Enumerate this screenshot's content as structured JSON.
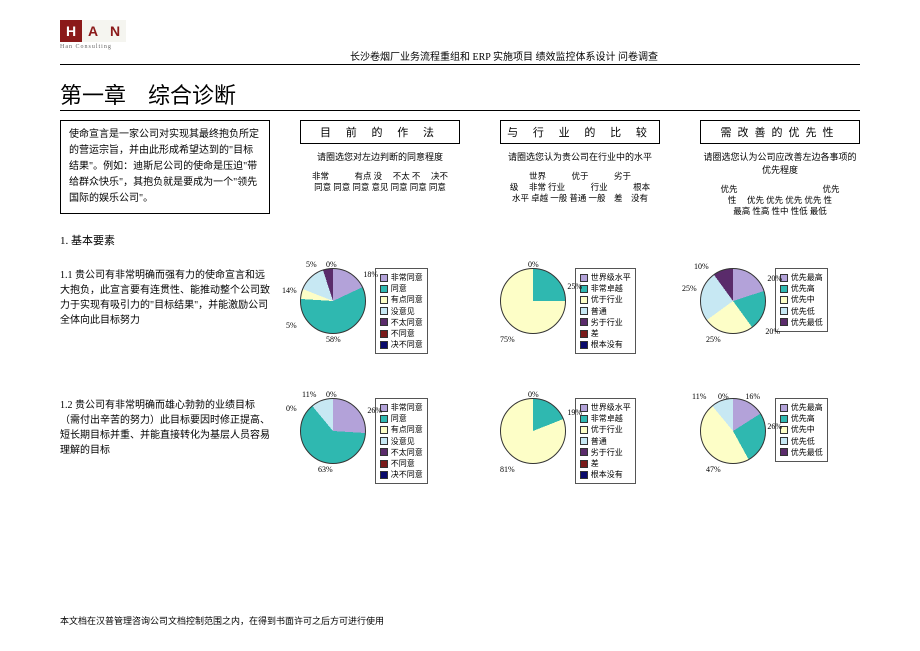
{
  "logo": {
    "h": "H",
    "a": "A",
    "n": "N",
    "sub": "Han Consulting"
  },
  "header_title": "长沙卷烟厂业务流程重组和 ERP 实施项目  绩效监控体系设计  问卷调查",
  "chapter": "第一章　综合诊断",
  "mission_box": "使命宣言是一家公司对实现其最终抱负所定的营运宗旨，并由此形成希望达到的\"目标结果\"。例如：迪斯尼公司的使命是压迫\"带给群众快乐\"，其抱负就是要成为一个\"领先国际的娱乐公司\"。",
  "section1_label": "1. 基本要素",
  "columns": {
    "c1": {
      "title": "目 前 的 作 法",
      "sub": "请圈选您对左边判断的同意程度",
      "scale_l1": "非常　　　有点 没　 不太 不　 决不",
      "scale_l2": "同意 同意 同意 意见 同意 同意 同意"
    },
    "c2": {
      "title": "与 行 业 的 比 较",
      "sub": "请圈选您认为贵公司在行业中的水平",
      "scale_l1": "世界　　　优于　　　劣于",
      "scale_l2": "级　 非常 行业　　　行业　　　根本",
      "scale_l3": "水平 卓越 一般 普通 一般　差　没有"
    },
    "c3": {
      "title": "需改善的优先性",
      "sub": "请圈选您认为公司应改善左边各事项的优先程度",
      "scale_l1": "优先　　　　　　　　　　优先",
      "scale_l2": "性　 优先 优先 优先 优先 性",
      "scale_l3": "最高 性高 性中 性低 最低"
    }
  },
  "q1": {
    "text": "1.1 贵公司有非常明确而强有力的使命宣言和远大抱负，此宣言要有连贯性、能推动整个公司致力于实现有吸引力的\"目标结果\"，并能激励公司全体向此目标努力"
  },
  "q2": {
    "text": "1.2 贵公司有非常明确而雄心勃勃的业绩目标（需付出辛苦的努力）此目标要因时修正提高、短长期目标并重、并能直接转化为基层人员容易理解的目标"
  },
  "legends": {
    "agree": [
      {
        "c": "#b3a2d9",
        "t": "非常同意"
      },
      {
        "c": "#2fb8b0",
        "t": "同意"
      },
      {
        "c": "#fdfec7",
        "t": "有点同意"
      },
      {
        "c": "#c7e8f3",
        "t": "没意见"
      },
      {
        "c": "#5a2b6b",
        "t": "不太同意"
      },
      {
        "c": "#7a1a1a",
        "t": "不同意"
      },
      {
        "c": "#0a0a6b",
        "t": "决不同意"
      }
    ],
    "industry": [
      {
        "c": "#b3a2d9",
        "t": "世界级水平"
      },
      {
        "c": "#2fb8b0",
        "t": "非常卓越"
      },
      {
        "c": "#fdfec7",
        "t": "优于行业"
      },
      {
        "c": "#c7e8f3",
        "t": "普通"
      },
      {
        "c": "#5a2b6b",
        "t": "劣于行业"
      },
      {
        "c": "#7a1a1a",
        "t": "差"
      },
      {
        "c": "#0a0a6b",
        "t": "根本没有"
      }
    ],
    "priority": [
      {
        "c": "#b3a2d9",
        "t": "优先最高"
      },
      {
        "c": "#2fb8b0",
        "t": "优先高"
      },
      {
        "c": "#fdfec7",
        "t": "优先中"
      },
      {
        "c": "#c7e8f3",
        "t": "优先低"
      },
      {
        "c": "#5a2b6b",
        "t": "优先最低"
      }
    ]
  },
  "pies": {
    "r1c1": {
      "type": "pie",
      "slices": [
        {
          "v": 18,
          "c": "#b3a2d9",
          "label": "18%"
        },
        {
          "v": 58,
          "c": "#2fb8b0",
          "label": "58%"
        },
        {
          "v": 5,
          "c": "#fdfec7",
          "label": "5%"
        },
        {
          "v": 14,
          "c": "#c7e8f3",
          "label": "14%"
        },
        {
          "v": 5,
          "c": "#5a2b6b",
          "label": "5%"
        },
        {
          "v": 0,
          "c": "#7a1a1a",
          "label": "0%"
        },
        {
          "v": 0,
          "c": "#0a0a6b",
          "label": "0%"
        }
      ],
      "gradient": "conic-gradient(from 0deg, #b3a2d9 0% 18%, #2fb8b0 18% 76%, #fdfec7 76% 81%, #c7e8f3 81% 95%, #5a2b6b 95% 100%)",
      "labels": {
        "p18": "18%",
        "p58": "58%",
        "p5a": "5%",
        "p14": "14%",
        "p5b": "5%",
        "p0": "0%"
      }
    },
    "r1c2": {
      "type": "pie",
      "slices": [
        {
          "v": 0,
          "c": "#b3a2d9"
        },
        {
          "v": 25,
          "c": "#2fb8b0"
        },
        {
          "v": 75,
          "c": "#fdfec7"
        }
      ],
      "gradient": "conic-gradient(from 0deg, #2fb8b0 0% 25%, #fdfec7 25% 100%)",
      "labels": {
        "p0": "0%",
        "p25": "25%",
        "p75": "75%"
      }
    },
    "r1c3": {
      "type": "pie",
      "slices": [
        {
          "v": 20,
          "c": "#b3a2d9"
        },
        {
          "v": 20,
          "c": "#2fb8b0"
        },
        {
          "v": 25,
          "c": "#fdfec7"
        },
        {
          "v": 25,
          "c": "#c7e8f3"
        },
        {
          "v": 10,
          "c": "#5a2b6b"
        }
      ],
      "gradient": "conic-gradient(from 0deg, #b3a2d9 0% 20%, #2fb8b0 20% 40%, #fdfec7 40% 65%, #c7e8f3 65% 90%, #5a2b6b 90% 100%)",
      "labels": {
        "p20a": "20%",
        "p20b": "20%",
        "p25a": "25%",
        "p25b": "25%",
        "p10": "10%"
      }
    },
    "r2c1": {
      "type": "pie",
      "slices": [
        {
          "v": 26,
          "c": "#b3a2d9"
        },
        {
          "v": 63,
          "c": "#2fb8b0"
        },
        {
          "v": 0,
          "c": "#fdfec7"
        },
        {
          "v": 11,
          "c": "#c7e8f3"
        }
      ],
      "gradient": "conic-gradient(from 0deg, #b3a2d9 0% 26%, #2fb8b0 26% 89%, #c7e8f3 89% 100%)",
      "labels": {
        "p26": "26%",
        "p63": "63%",
        "p0": "0%",
        "p11": "11%"
      }
    },
    "r2c2": {
      "type": "pie",
      "slices": [
        {
          "v": 0,
          "c": "#b3a2d9"
        },
        {
          "v": 19,
          "c": "#2fb8b0"
        },
        {
          "v": 81,
          "c": "#fdfec7"
        }
      ],
      "gradient": "conic-gradient(from 0deg, #2fb8b0 0% 19%, #fdfec7 19% 100%)",
      "labels": {
        "p0": "0%",
        "p19": "19%",
        "p81": "81%"
      }
    },
    "r2c3": {
      "type": "pie",
      "slices": [
        {
          "v": 16,
          "c": "#b3a2d9"
        },
        {
          "v": 26,
          "c": "#2fb8b0"
        },
        {
          "v": 47,
          "c": "#fdfec7"
        },
        {
          "v": 11,
          "c": "#c7e8f3"
        },
        {
          "v": 0,
          "c": "#5a2b6b"
        }
      ],
      "gradient": "conic-gradient(from 0deg, #b3a2d9 0% 16%, #2fb8b0 16% 42%, #fdfec7 42% 89%, #c7e8f3 89% 100%)",
      "labels": {
        "p16": "16%",
        "p26": "26%",
        "p47": "47%",
        "p11": "11%",
        "p0": "0%"
      }
    }
  },
  "footer": "本文档在汉普管理咨询公司文档控制范围之内，在得到书面许可之后方可进行使用"
}
